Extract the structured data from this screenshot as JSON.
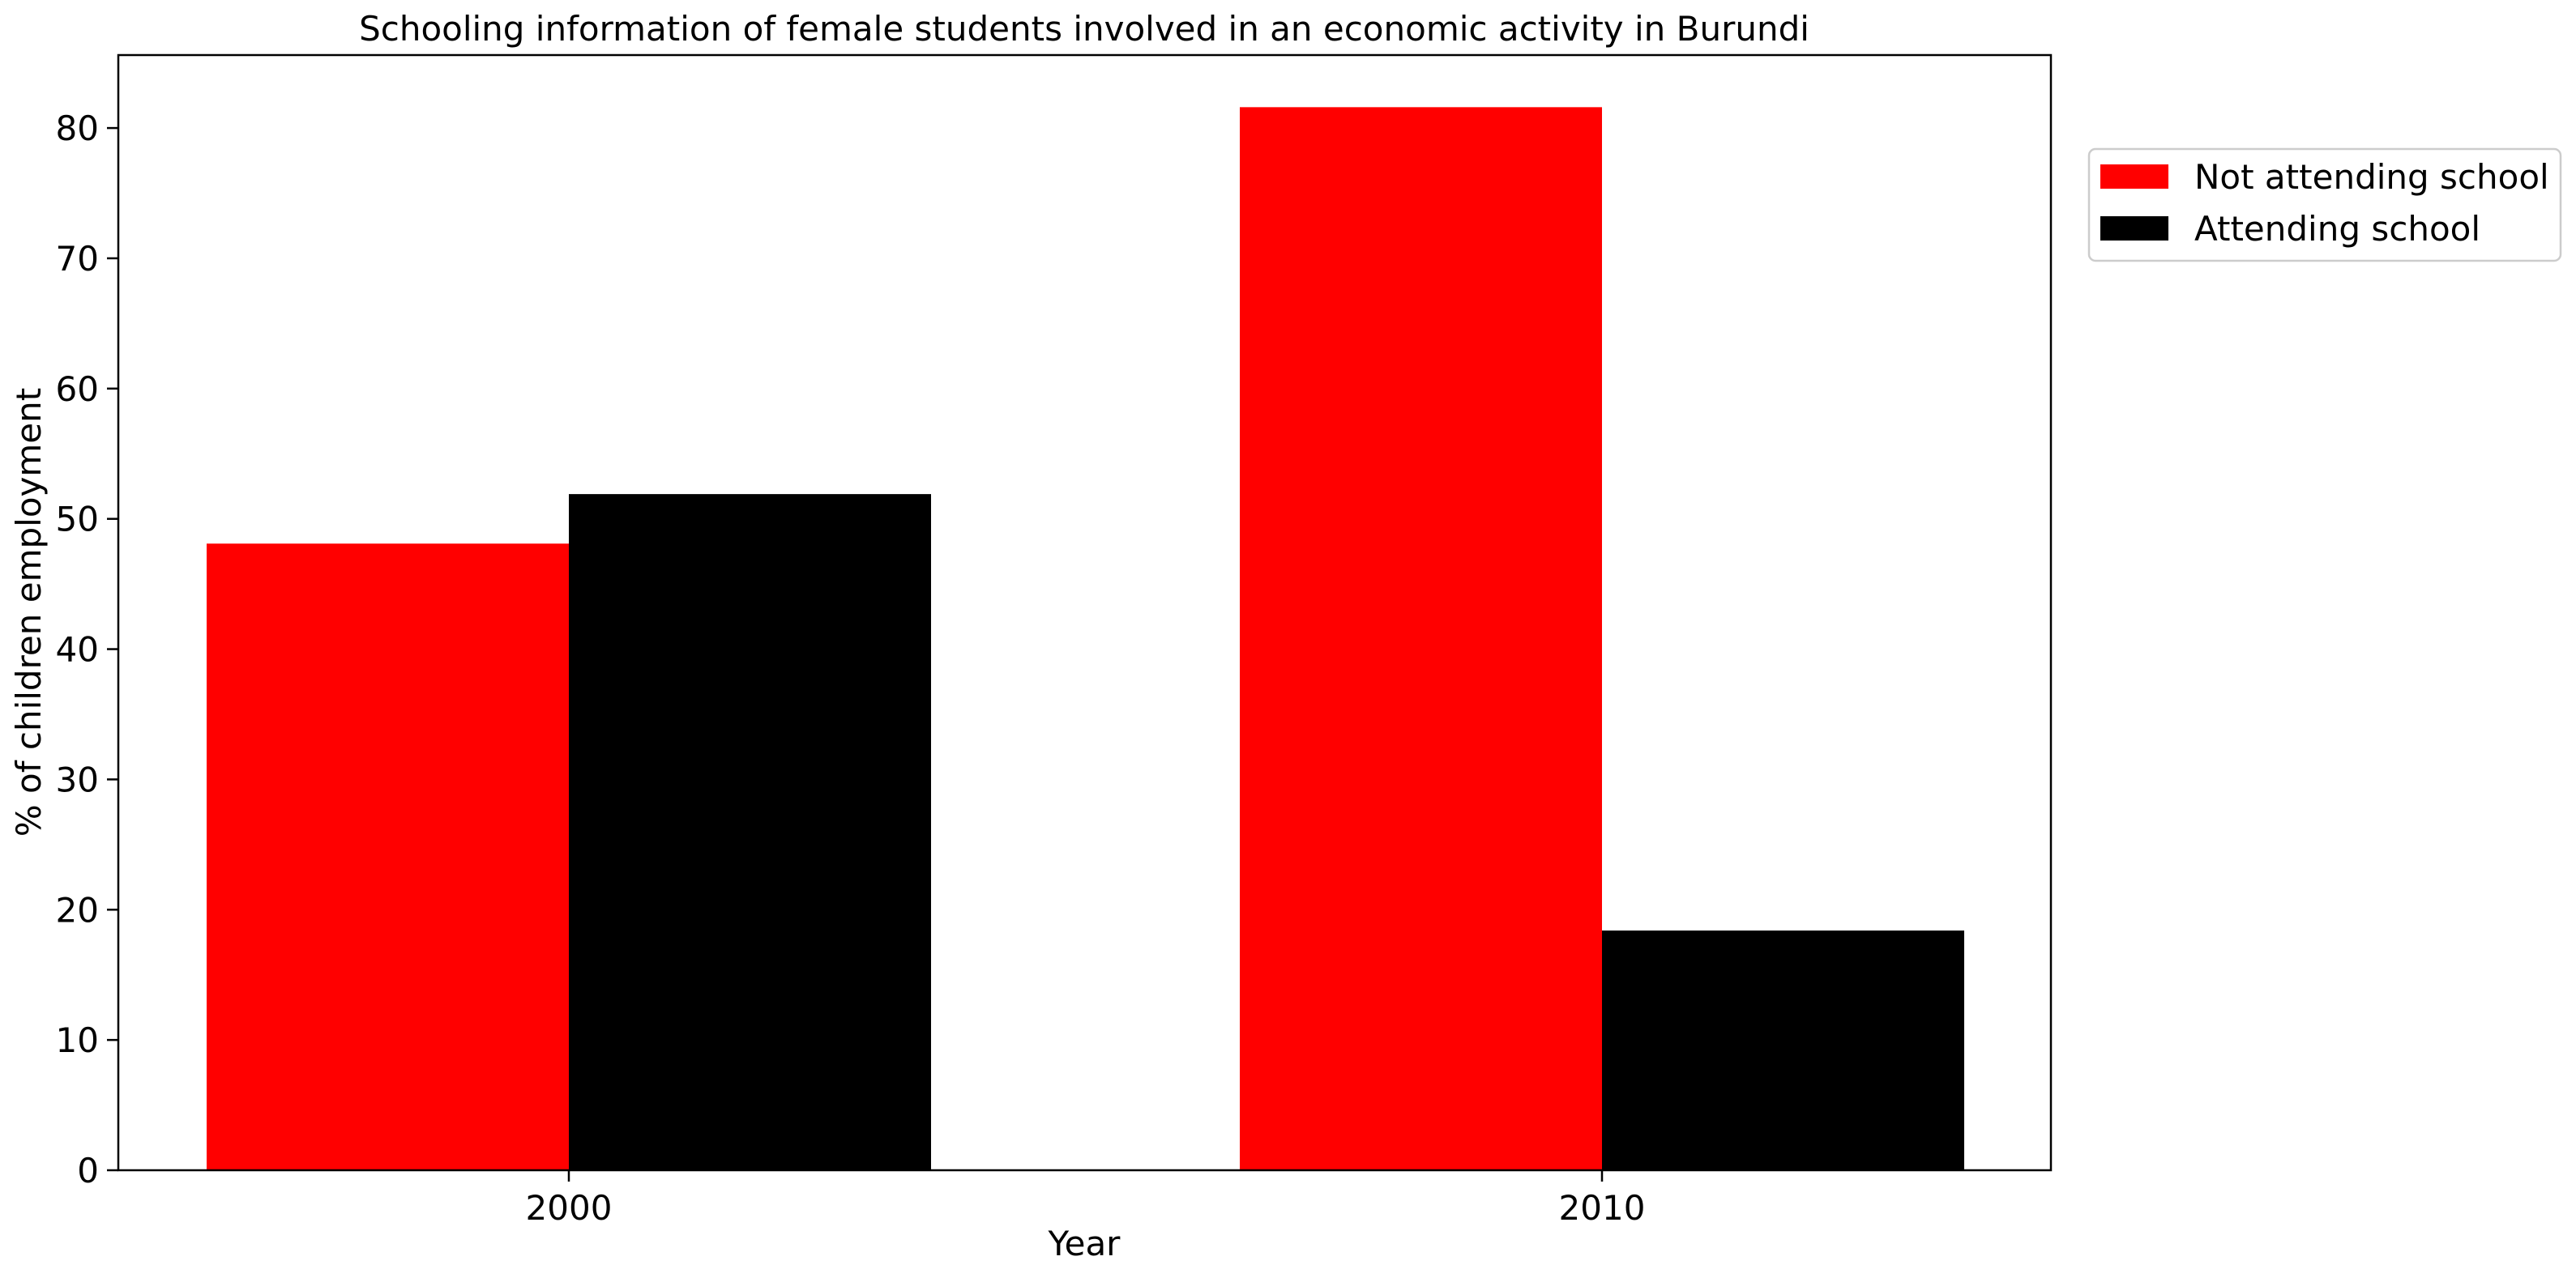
{
  "chart_data": {
    "type": "bar",
    "title": "Schooling information of female students involved in an economic activity in Burundi",
    "xlabel": "Year",
    "ylabel": "% of children employment",
    "categories": [
      "2000",
      "2010"
    ],
    "series": [
      {
        "name": "Not attending school",
        "values": [
          48.1,
          81.6
        ],
        "color": "#ff0000"
      },
      {
        "name": "Attending school",
        "values": [
          51.9,
          18.4
        ],
        "color": "#000000"
      }
    ],
    "ylim": [
      0,
      85.6
    ],
    "yticks": [
      0,
      10,
      20,
      30,
      40,
      50,
      60,
      70,
      80
    ],
    "grid": false,
    "legend_position": "outside-top-right"
  }
}
